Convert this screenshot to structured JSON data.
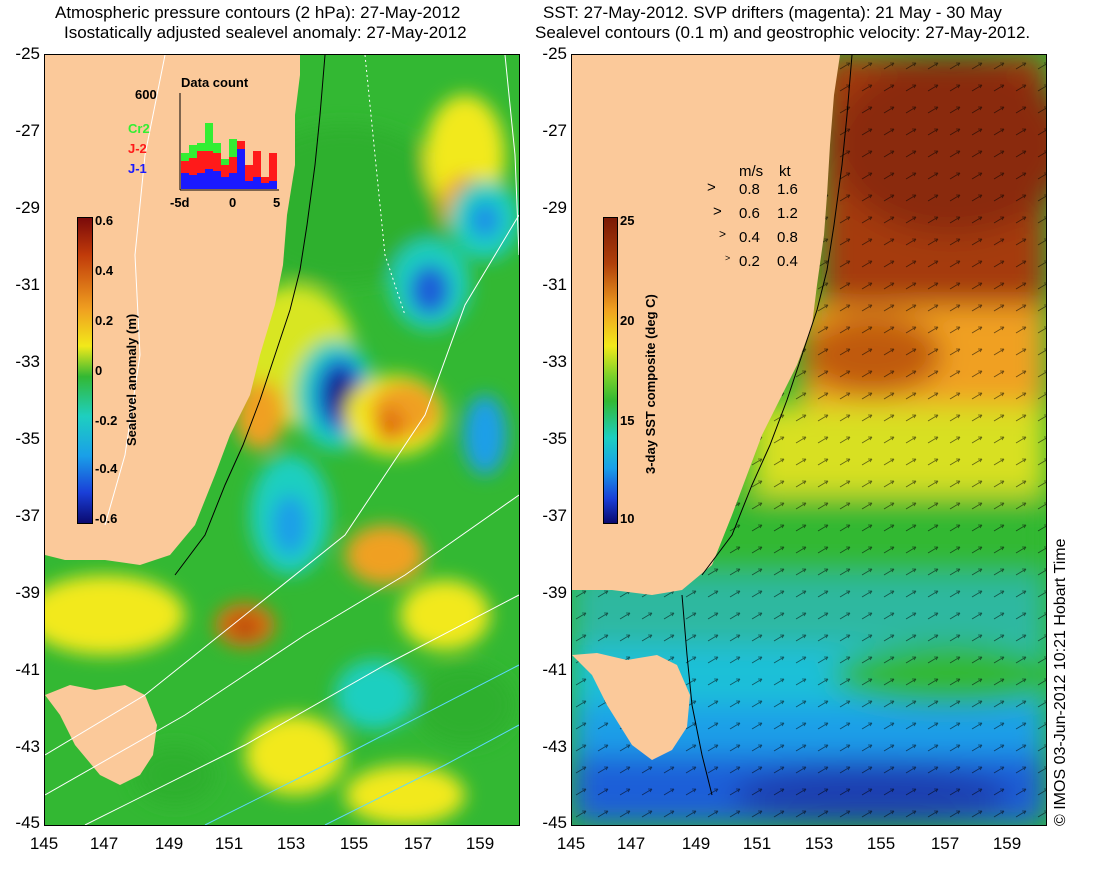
{
  "left_panel": {
    "title_line1": "Atmospheric pressure contours (2 hPa): 27-May-2012",
    "title_line2": "Isostatically adjusted sealevel anomaly: 27-May-2012",
    "colorbar": {
      "label": "Sealevel anomaly (m)",
      "ticks": [
        "0.6",
        "0.4",
        "0.2",
        "0",
        "-0.2",
        "-0.4",
        "-0.6"
      ]
    },
    "data_count": {
      "title": "Data count",
      "max_label": "600",
      "series": [
        {
          "name": "Cr2",
          "color": "#33ee33"
        },
        {
          "name": "J-2",
          "color": "#ff1a1a"
        },
        {
          "name": "J-1",
          "color": "#1a1aff"
        }
      ],
      "x_ticks": [
        "-5d",
        "0",
        "5"
      ]
    }
  },
  "right_panel": {
    "title_line1": "SST: 27-May-2012. SVP drifters (magenta): 21 May - 30 May",
    "title_line2": "Sealevel contours (0.1 m) and geostrophic velocity: 27-May-2012.",
    "colorbar": {
      "label": "3-day SST composite (deg C)",
      "ticks": [
        "25",
        "20",
        "15",
        "10"
      ]
    },
    "velocity_legend": {
      "header_ms": "m/s",
      "header_kt": "kt",
      "rows": [
        {
          "ms": "0.8",
          "kt": "1.6"
        },
        {
          "ms": "0.6",
          "kt": "1.2"
        },
        {
          "ms": "0.4",
          "kt": "0.8"
        },
        {
          "ms": "0.2",
          "kt": "0.4"
        }
      ]
    }
  },
  "axes": {
    "lat_ticks": [
      "-25",
      "-27",
      "-29",
      "-31",
      "-33",
      "-35",
      "-37",
      "-39",
      "-41",
      "-43",
      "-45"
    ],
    "lon_ticks": [
      "145",
      "147",
      "149",
      "151",
      "153",
      "155",
      "157",
      "159"
    ]
  },
  "copyright": "© IMOS 03-Jun-2012 10:21 Hobart Time",
  "colors": {
    "land": "#fbc99a",
    "ocean_green": "#33b833",
    "ocean_yellow": "#f2e91a",
    "ocean_orange": "#f0a020",
    "ocean_red": "#a53a0b",
    "ocean_blue": "#1a8fe8",
    "ocean_darkblue": "#0a2a8a"
  }
}
